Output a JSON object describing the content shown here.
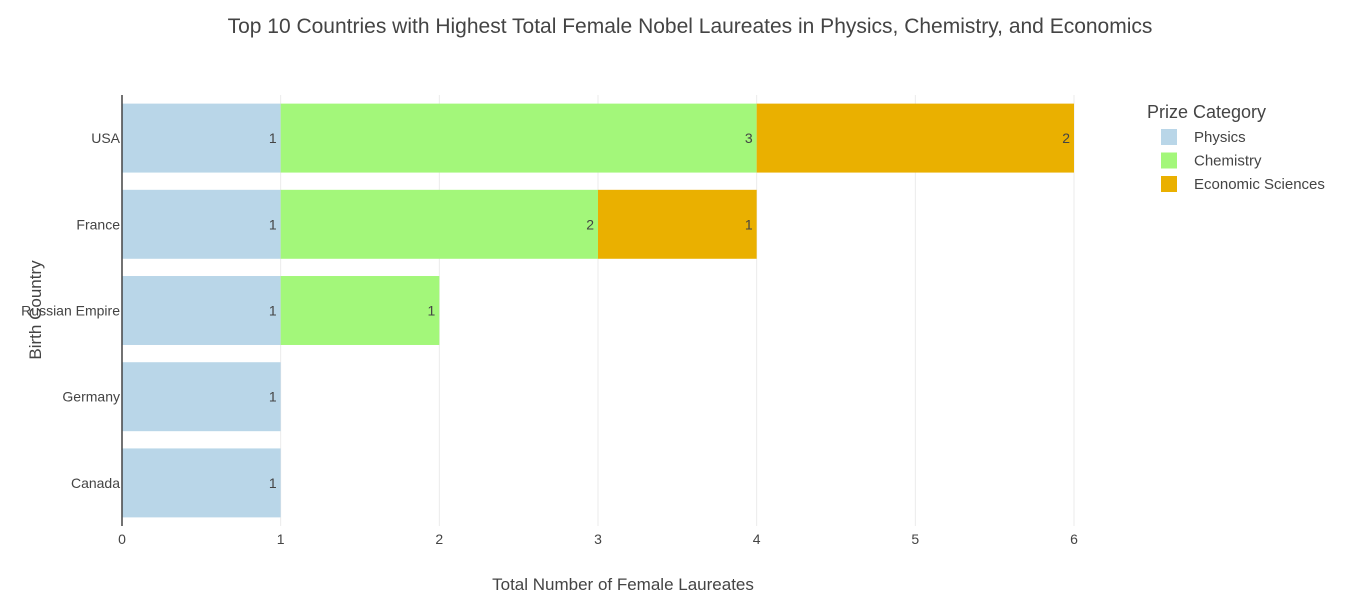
{
  "chart_data": {
    "type": "bar",
    "orientation": "horizontal",
    "barmode": "stack",
    "title": "Top 10 Countries with Highest Total Female Nobel Laureates in Physics, Chemistry, and Economics",
    "xlabel": "Total Number of Female Laureates",
    "ylabel": "Birth Country",
    "xlim": [
      0,
      6
    ],
    "xticks": [
      0,
      1,
      2,
      3,
      4,
      5,
      6
    ],
    "grid": true,
    "categories": [
      "USA",
      "France",
      "Russian Empire",
      "Germany",
      "Canada"
    ],
    "legend": {
      "title": "Prize Category",
      "position": "top-right"
    },
    "series": [
      {
        "name": "Physics",
        "color": "#b9d6e8",
        "values": [
          1,
          1,
          1,
          1,
          1
        ]
      },
      {
        "name": "Chemistry",
        "color": "#a3f77a",
        "values": [
          3,
          2,
          1,
          null,
          null
        ]
      },
      {
        "name": "Economic Sciences",
        "color": "#eab000",
        "values": [
          2,
          1,
          null,
          null,
          null
        ]
      }
    ]
  }
}
